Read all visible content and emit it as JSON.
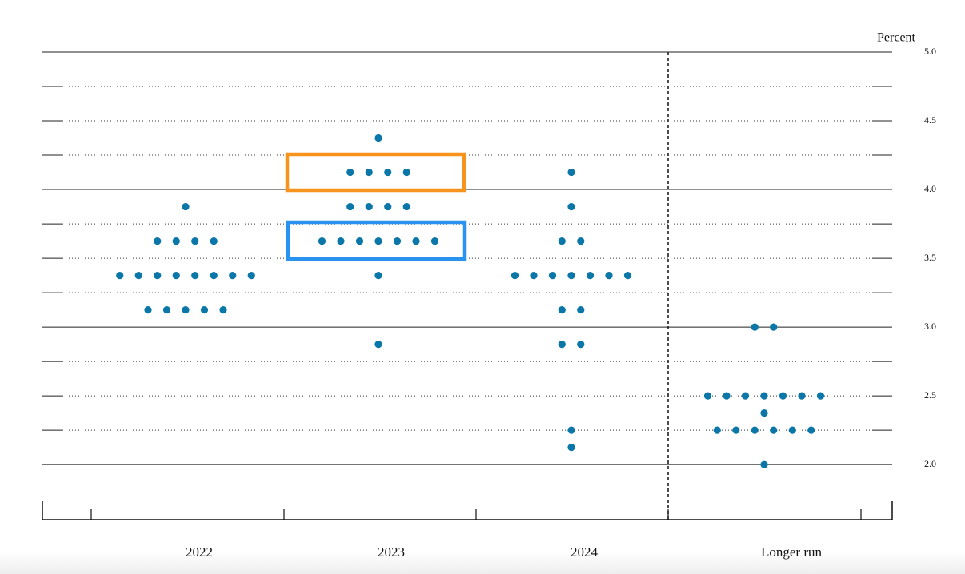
{
  "chart_data": {
    "type": "dot",
    "ylabel": "Percent",
    "categories": [
      "2022",
      "2023",
      "2024",
      "Longer run"
    ],
    "values": [
      [
        3.875,
        3.625,
        3.625,
        3.625,
        3.625,
        3.375,
        3.375,
        3.375,
        3.375,
        3.375,
        3.375,
        3.375,
        3.375,
        3.125,
        3.125,
        3.125,
        3.125,
        3.125
      ],
      [
        4.375,
        4.125,
        4.125,
        4.125,
        4.125,
        3.875,
        3.875,
        3.875,
        3.875,
        3.625,
        3.625,
        3.625,
        3.625,
        3.625,
        3.625,
        3.625,
        3.375,
        2.875
      ],
      [
        4.125,
        3.875,
        3.625,
        3.625,
        3.375,
        3.375,
        3.375,
        3.375,
        3.375,
        3.375,
        3.375,
        3.125,
        3.125,
        2.875,
        2.875,
        2.25,
        2.125
      ],
      [
        3.0,
        3.0,
        2.5,
        2.5,
        2.5,
        2.5,
        2.5,
        2.5,
        2.5,
        2.375,
        2.25,
        2.25,
        2.25,
        2.25,
        2.25,
        2.25,
        2.0
      ]
    ],
    "color": "#0b77a8",
    "ylim": [
      1.6,
      5.0
    ],
    "yticks": [
      {
        "value": 5.0,
        "label": "5.0"
      },
      {
        "value": 4.5,
        "label": "4.5"
      },
      {
        "value": 4.0,
        "label": "4.0"
      },
      {
        "value": 3.5,
        "label": "3.5"
      },
      {
        "value": 3.0,
        "label": "3.0"
      },
      {
        "value": 2.5,
        "label": "2.5"
      },
      {
        "value": 2.0,
        "label": "2.0"
      }
    ],
    "yminorticks": [
      4.75,
      4.25,
      3.75,
      3.25,
      2.75,
      2.25
    ],
    "grid": true
  }
}
